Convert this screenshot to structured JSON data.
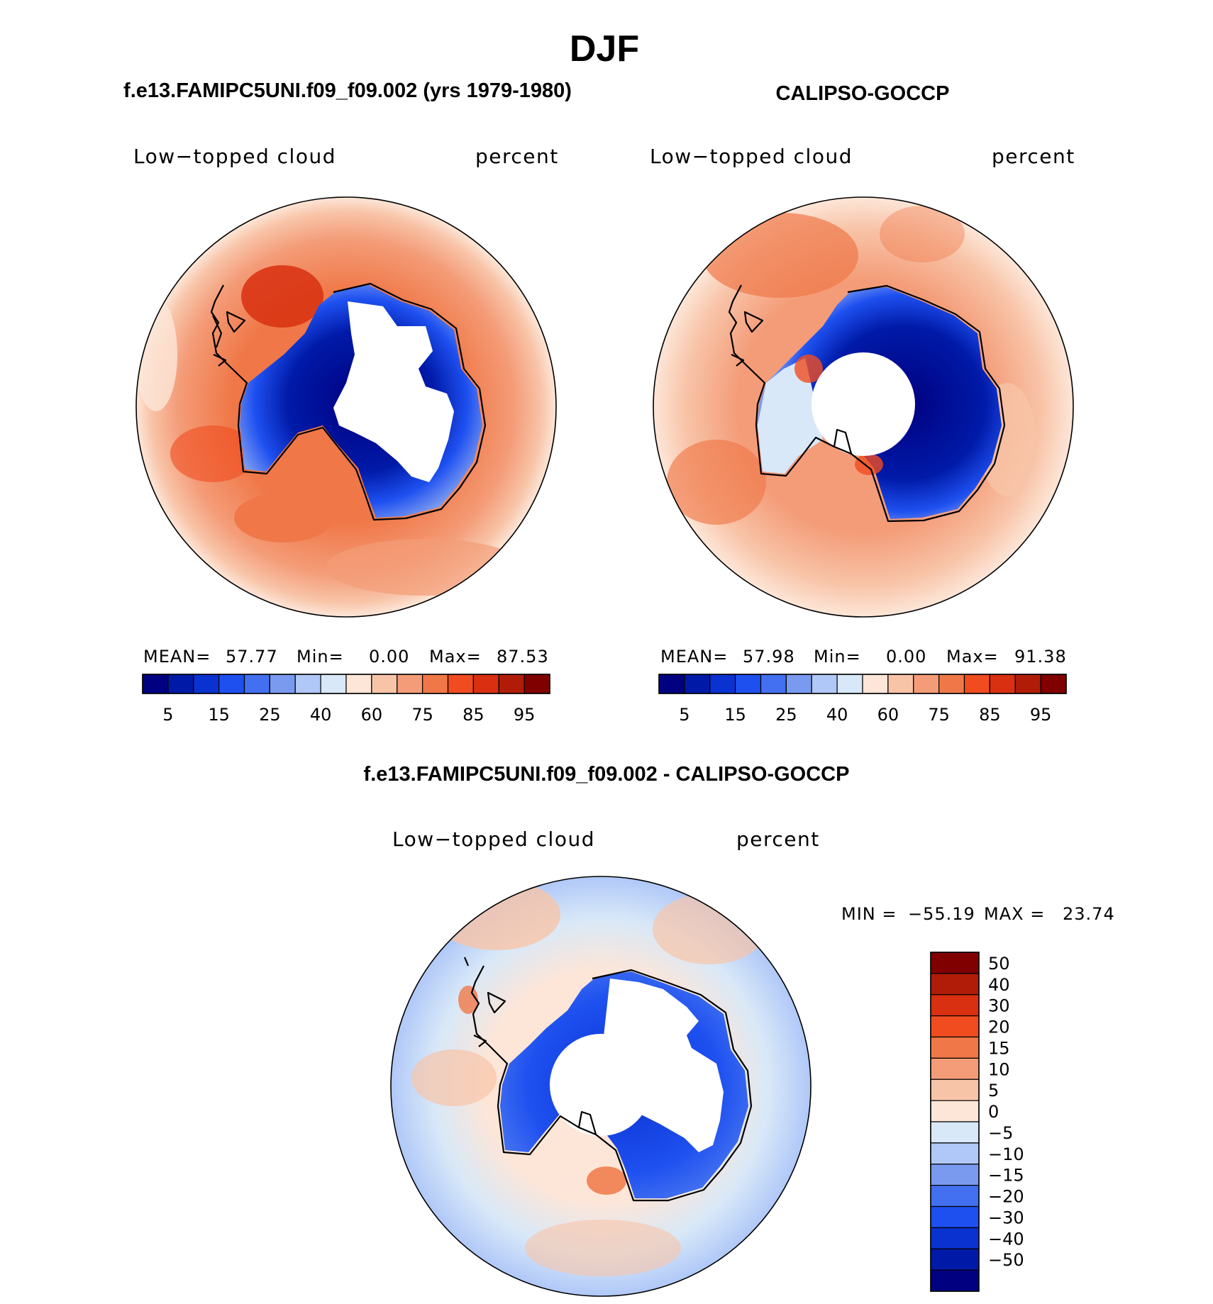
{
  "page": {
    "title": "DJF",
    "colors": {
      "text": "#000000",
      "background": "#ffffff"
    }
  },
  "abs_colors": [
    "#000080",
    "#001aa8",
    "#0a32d0",
    "#1e50f0",
    "#4270f0",
    "#7a9af0",
    "#b0c8f8",
    "#d8e8f8",
    "#fde6d8",
    "#f8c4a8",
    "#f49c78",
    "#f07848",
    "#f04c20",
    "#d83010",
    "#b01c08",
    "#800000"
  ],
  "diff_colors": [
    "#000080",
    "#001aa8",
    "#0a32d0",
    "#1e50f0",
    "#4270f0",
    "#7a9af0",
    "#b0c8f8",
    "#d8e8f8",
    "#fde6d8",
    "#f8c4a8",
    "#f49c78",
    "#f07848",
    "#f04c20",
    "#d83010",
    "#b01c08",
    "#800000"
  ],
  "chart_data": [
    {
      "type": "heatmap",
      "projection": "south-polar-stereographic",
      "title": "f.e13.FAMIPC5UNI.f09_f09.002 (yrs 1979-1980)",
      "variable": "Low−topped cloud",
      "units": "percent",
      "stats": {
        "mean_label": "MEAN=",
        "mean": "57.77",
        "min_label": "Min=",
        "min": "0.00",
        "max_label": "Max=",
        "max": "87.53"
      },
      "colorbar": {
        "levels": [
          5,
          10,
          15,
          20,
          25,
          30,
          40,
          50,
          60,
          70,
          75,
          80,
          85,
          90,
          95
        ],
        "tick_labels": [
          "5",
          "15",
          "25",
          "40",
          "60",
          "75",
          "85",
          "95"
        ]
      }
    },
    {
      "type": "heatmap",
      "projection": "south-polar-stereographic",
      "title": "CALIPSO-GOCCP",
      "variable": "Low−topped cloud",
      "units": "percent",
      "stats": {
        "mean_label": "MEAN=",
        "mean": "57.98",
        "min_label": "Min=",
        "min": "0.00",
        "max_label": "Max=",
        "max": "91.38"
      },
      "colorbar": {
        "levels": [
          5,
          10,
          15,
          20,
          25,
          30,
          40,
          50,
          60,
          70,
          75,
          80,
          85,
          90,
          95
        ],
        "tick_labels": [
          "5",
          "15",
          "25",
          "40",
          "60",
          "75",
          "85",
          "95"
        ]
      }
    },
    {
      "type": "heatmap",
      "projection": "south-polar-stereographic",
      "title": "f.e13.FAMIPC5UNI.f09_f09.002 - CALIPSO-GOCCP",
      "variable": "Low−topped cloud",
      "units": "percent",
      "stats": {
        "min_label": "MIN =",
        "min": "−55.19",
        "max_label": "MAX =",
        "max": "23.74"
      },
      "colorbar": {
        "levels": [
          -50,
          -40,
          -30,
          -20,
          -15,
          -10,
          -5,
          0,
          5,
          10,
          15,
          20,
          30,
          40,
          50
        ],
        "tick_labels": [
          "50",
          "40",
          "30",
          "20",
          "15",
          "10",
          "5",
          "0",
          "−5",
          "−10",
          "−15",
          "−20",
          "−30",
          "−40",
          "−50"
        ]
      }
    }
  ]
}
